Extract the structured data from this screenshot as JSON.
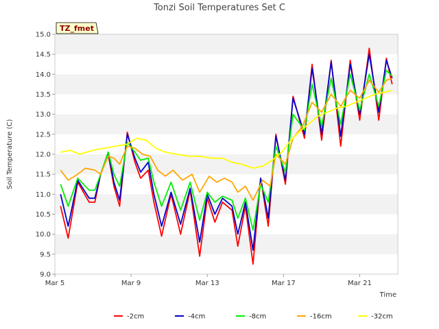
{
  "chart_data": {
    "type": "line",
    "title": "Tonzi Soil Temperatures Set C",
    "xlabel": "Time",
    "ylabel": "Soil Temperature (C)",
    "site_label": "TZ_fmet",
    "xlim": [
      0,
      18
    ],
    "ylim": [
      9.0,
      15.0
    ],
    "grid": "horizontal alternating bands",
    "legend_position": "bottom",
    "x_ticks": [
      {
        "x": 0,
        "label": "Mar 5"
      },
      {
        "x": 4,
        "label": "Mar 9"
      },
      {
        "x": 8,
        "label": "Mar 13"
      },
      {
        "x": 12,
        "label": "Mar 17"
      },
      {
        "x": 16,
        "label": "Mar 21"
      }
    ],
    "y_ticks": [
      {
        "y": 9.0,
        "label": "9.0"
      },
      {
        "y": 9.5,
        "label": "9.5"
      },
      {
        "y": 10.0,
        "label": "10.0"
      },
      {
        "y": 10.5,
        "label": "10.5"
      },
      {
        "y": 11.0,
        "label": "11.0"
      },
      {
        "y": 11.5,
        "label": "11.5"
      },
      {
        "y": 12.0,
        "label": "12.0"
      },
      {
        "y": 12.5,
        "label": "12.5"
      },
      {
        "y": 13.0,
        "label": "13.0"
      },
      {
        "y": 13.5,
        "label": "13.5"
      },
      {
        "y": 14.0,
        "label": "14.0"
      },
      {
        "y": 14.5,
        "label": "14.5"
      },
      {
        "y": 15.0,
        "label": "15.0"
      }
    ],
    "series": [
      {
        "name": "-2cm",
        "color": "#ff0000",
        "points": [
          [
            0.3,
            10.7
          ],
          [
            0.7,
            9.9
          ],
          [
            1.2,
            11.3
          ],
          [
            1.8,
            10.8
          ],
          [
            2.1,
            10.8
          ],
          [
            2.4,
            11.5
          ],
          [
            2.8,
            12.0
          ],
          [
            3.1,
            11.2
          ],
          [
            3.4,
            10.7
          ],
          [
            3.8,
            12.55
          ],
          [
            4.2,
            11.8
          ],
          [
            4.5,
            11.4
          ],
          [
            4.9,
            11.6
          ],
          [
            5.2,
            10.8
          ],
          [
            5.6,
            9.95
          ],
          [
            6.1,
            11.0
          ],
          [
            6.6,
            10.0
          ],
          [
            7.1,
            11.1
          ],
          [
            7.6,
            9.45
          ],
          [
            8.0,
            10.9
          ],
          [
            8.4,
            10.3
          ],
          [
            8.8,
            10.8
          ],
          [
            9.3,
            10.6
          ],
          [
            9.6,
            9.7
          ],
          [
            10.0,
            10.7
          ],
          [
            10.4,
            9.25
          ],
          [
            10.8,
            11.4
          ],
          [
            11.2,
            10.2
          ],
          [
            11.6,
            12.5
          ],
          [
            12.1,
            11.25
          ],
          [
            12.5,
            13.45
          ],
          [
            13.1,
            12.4
          ],
          [
            13.5,
            14.25
          ],
          [
            14.0,
            12.35
          ],
          [
            14.5,
            14.35
          ],
          [
            15.0,
            12.2
          ],
          [
            15.5,
            14.35
          ],
          [
            16.0,
            12.85
          ],
          [
            16.5,
            14.65
          ],
          [
            17.0,
            12.85
          ],
          [
            17.4,
            14.4
          ],
          [
            17.7,
            13.75
          ]
        ]
      },
      {
        "name": "-4cm",
        "color": "#0000cc",
        "points": [
          [
            0.3,
            11.0
          ],
          [
            0.7,
            10.2
          ],
          [
            1.2,
            11.35
          ],
          [
            1.8,
            10.9
          ],
          [
            2.1,
            10.9
          ],
          [
            2.4,
            11.5
          ],
          [
            2.8,
            12.05
          ],
          [
            3.1,
            11.3
          ],
          [
            3.4,
            10.85
          ],
          [
            3.8,
            12.5
          ],
          [
            4.2,
            11.9
          ],
          [
            4.5,
            11.55
          ],
          [
            4.9,
            11.8
          ],
          [
            5.2,
            11.0
          ],
          [
            5.6,
            10.2
          ],
          [
            6.1,
            11.05
          ],
          [
            6.6,
            10.25
          ],
          [
            7.1,
            11.15
          ],
          [
            7.6,
            9.8
          ],
          [
            8.0,
            11.0
          ],
          [
            8.4,
            10.5
          ],
          [
            8.8,
            10.9
          ],
          [
            9.3,
            10.7
          ],
          [
            9.6,
            10.0
          ],
          [
            10.0,
            10.8
          ],
          [
            10.4,
            9.6
          ],
          [
            10.8,
            11.4
          ],
          [
            11.2,
            10.4
          ],
          [
            11.6,
            12.45
          ],
          [
            12.1,
            11.35
          ],
          [
            12.5,
            13.4
          ],
          [
            13.1,
            12.5
          ],
          [
            13.5,
            14.15
          ],
          [
            14.0,
            12.5
          ],
          [
            14.5,
            14.3
          ],
          [
            15.0,
            12.45
          ],
          [
            15.5,
            14.25
          ],
          [
            16.0,
            13.0
          ],
          [
            16.5,
            14.5
          ],
          [
            17.0,
            13.05
          ],
          [
            17.4,
            14.35
          ],
          [
            17.7,
            13.9
          ]
        ]
      },
      {
        "name": "-8cm",
        "color": "#00ee00",
        "points": [
          [
            0.3,
            11.25
          ],
          [
            0.7,
            10.7
          ],
          [
            1.2,
            11.4
          ],
          [
            1.8,
            11.1
          ],
          [
            2.1,
            11.1
          ],
          [
            2.4,
            11.5
          ],
          [
            2.8,
            12.05
          ],
          [
            3.1,
            11.5
          ],
          [
            3.4,
            11.2
          ],
          [
            3.8,
            12.3
          ],
          [
            4.2,
            12.05
          ],
          [
            4.5,
            11.85
          ],
          [
            4.9,
            11.9
          ],
          [
            5.2,
            11.3
          ],
          [
            5.6,
            10.7
          ],
          [
            6.1,
            11.3
          ],
          [
            6.6,
            10.6
          ],
          [
            7.1,
            11.3
          ],
          [
            7.6,
            10.35
          ],
          [
            8.0,
            11.05
          ],
          [
            8.4,
            10.8
          ],
          [
            8.8,
            10.95
          ],
          [
            9.3,
            10.85
          ],
          [
            9.6,
            10.4
          ],
          [
            10.0,
            10.9
          ],
          [
            10.4,
            10.1
          ],
          [
            10.8,
            11.25
          ],
          [
            11.2,
            10.8
          ],
          [
            11.6,
            12.2
          ],
          [
            12.1,
            11.55
          ],
          [
            12.5,
            13.0
          ],
          [
            13.1,
            12.6
          ],
          [
            13.5,
            13.75
          ],
          [
            14.0,
            12.7
          ],
          [
            14.5,
            13.9
          ],
          [
            15.0,
            12.75
          ],
          [
            15.5,
            14.0
          ],
          [
            16.0,
            13.1
          ],
          [
            16.5,
            14.0
          ],
          [
            17.0,
            13.2
          ],
          [
            17.4,
            14.1
          ],
          [
            17.7,
            13.95
          ]
        ]
      },
      {
        "name": "-16cm",
        "color": "#ffa500",
        "points": [
          [
            0.3,
            11.6
          ],
          [
            0.7,
            11.35
          ],
          [
            1.2,
            11.5
          ],
          [
            1.6,
            11.65
          ],
          [
            2.1,
            11.6
          ],
          [
            2.4,
            11.5
          ],
          [
            2.8,
            11.95
          ],
          [
            3.1,
            11.9
          ],
          [
            3.4,
            11.75
          ],
          [
            3.8,
            12.2
          ],
          [
            4.2,
            12.15
          ],
          [
            4.6,
            12.0
          ],
          [
            5.0,
            11.95
          ],
          [
            5.4,
            11.6
          ],
          [
            5.8,
            11.45
          ],
          [
            6.2,
            11.6
          ],
          [
            6.7,
            11.35
          ],
          [
            7.2,
            11.5
          ],
          [
            7.6,
            11.05
          ],
          [
            8.1,
            11.45
          ],
          [
            8.5,
            11.3
          ],
          [
            8.9,
            11.4
          ],
          [
            9.3,
            11.3
          ],
          [
            9.6,
            11.05
          ],
          [
            10.0,
            11.2
          ],
          [
            10.4,
            10.85
          ],
          [
            10.9,
            11.35
          ],
          [
            11.3,
            11.2
          ],
          [
            11.6,
            12.0
          ],
          [
            12.1,
            11.75
          ],
          [
            12.5,
            12.4
          ],
          [
            13.0,
            12.7
          ],
          [
            13.5,
            13.3
          ],
          [
            14.0,
            13.05
          ],
          [
            14.5,
            13.5
          ],
          [
            15.0,
            13.2
          ],
          [
            15.5,
            13.6
          ],
          [
            16.0,
            13.4
          ],
          [
            16.5,
            13.85
          ],
          [
            17.0,
            13.55
          ],
          [
            17.4,
            13.85
          ],
          [
            17.7,
            13.9
          ]
        ]
      },
      {
        "name": "-32cm",
        "color": "#ffff00",
        "points": [
          [
            0.3,
            12.05
          ],
          [
            0.8,
            12.1
          ],
          [
            1.3,
            12.0
          ],
          [
            2.0,
            12.1
          ],
          [
            2.6,
            12.15
          ],
          [
            3.2,
            12.2
          ],
          [
            3.8,
            12.25
          ],
          [
            4.3,
            12.4
          ],
          [
            4.8,
            12.35
          ],
          [
            5.3,
            12.15
          ],
          [
            5.8,
            12.05
          ],
          [
            6.4,
            12.0
          ],
          [
            7.0,
            11.95
          ],
          [
            7.6,
            11.95
          ],
          [
            8.2,
            11.9
          ],
          [
            8.8,
            11.9
          ],
          [
            9.3,
            11.8
          ],
          [
            9.8,
            11.75
          ],
          [
            10.4,
            11.65
          ],
          [
            10.9,
            11.7
          ],
          [
            11.4,
            11.85
          ],
          [
            11.9,
            12.05
          ],
          [
            12.3,
            12.3
          ],
          [
            12.8,
            12.55
          ],
          [
            13.3,
            12.75
          ],
          [
            13.8,
            12.95
          ],
          [
            14.3,
            13.05
          ],
          [
            14.8,
            13.15
          ],
          [
            15.3,
            13.2
          ],
          [
            15.8,
            13.3
          ],
          [
            16.3,
            13.4
          ],
          [
            16.8,
            13.5
          ],
          [
            17.3,
            13.55
          ],
          [
            17.7,
            13.6
          ]
        ]
      }
    ]
  }
}
